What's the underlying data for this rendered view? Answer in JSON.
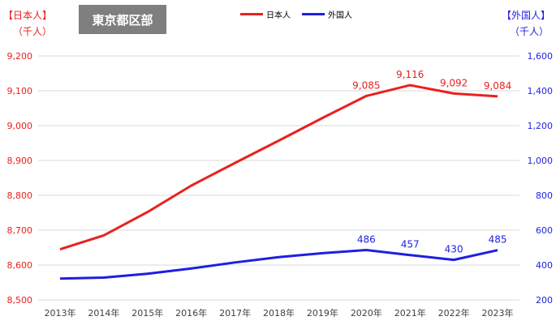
{
  "region_label": "東京都区部",
  "left_axis": {
    "title": "【日本人】",
    "unit": "（千人）"
  },
  "right_axis": {
    "title": "【外国人】",
    "unit": "（千人）"
  },
  "colors": {
    "japanese": "#e8221e",
    "foreign": "#1f1fe0",
    "grid": "#d9d9d9",
    "axis_text": "#404040"
  },
  "chart_data": {
    "type": "line",
    "categories": [
      "2013年",
      "2014年",
      "2015年",
      "2016年",
      "2017年",
      "2018年",
      "2019年",
      "2020年",
      "2021年",
      "2022年",
      "2023年"
    ],
    "series": [
      {
        "name": "日本人",
        "axis": "left",
        "values": [
          8645,
          8685,
          8752,
          8828,
          8893,
          8957,
          9022,
          9085,
          9116,
          9092,
          9084
        ],
        "labels": {
          "7": "9,085",
          "8": "9,116",
          "9": "9,092",
          "10": "9,084"
        }
      },
      {
        "name": "外国人",
        "axis": "right",
        "values": [
          322,
          328,
          350,
          380,
          415,
          445,
          468,
          486,
          457,
          430,
          485
        ],
        "labels": {
          "7": "486",
          "8": "457",
          "9": "430",
          "10": "485"
        }
      }
    ],
    "left_ylim": [
      8500,
      9200
    ],
    "left_ticks": [
      "8,500",
      "8,600",
      "8,700",
      "8,800",
      "8,900",
      "9,000",
      "9,100",
      "9,200"
    ],
    "right_ylim": [
      200,
      1600
    ],
    "right_ticks": [
      "200",
      "400",
      "600",
      "800",
      "1,000",
      "1,200",
      "1,400",
      "1,600"
    ],
    "legend_position": "top-center",
    "grid": true
  }
}
